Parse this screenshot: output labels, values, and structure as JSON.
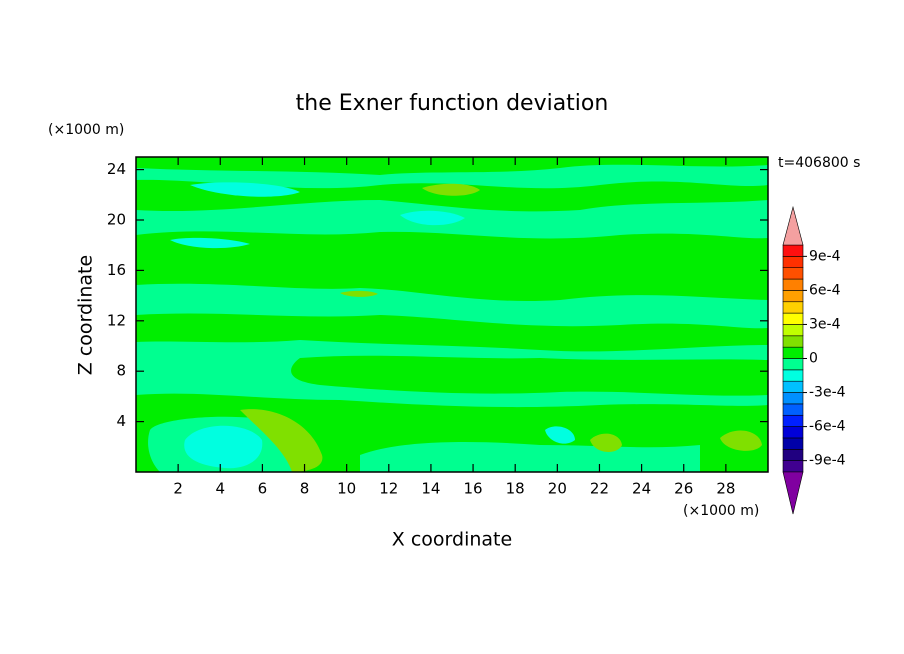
{
  "chart_data": {
    "type": "contour",
    "title": "the Exner function deviation",
    "xlabel": "X coordinate",
    "ylabel": "Z coordinate",
    "x_unit": "(×1000 m)",
    "y_unit": "(×1000 m)",
    "annotation": "t=406800 s",
    "xlim": [
      0,
      30
    ],
    "ylim": [
      0,
      25
    ],
    "xticks": [
      2,
      4,
      6,
      8,
      10,
      12,
      14,
      16,
      18,
      20,
      22,
      24,
      26,
      28
    ],
    "yticks": [
      4,
      8,
      12,
      16,
      20,
      24
    ],
    "colorbar": {
      "levels": [
        -0.001,
        -0.0009,
        -0.0008,
        -0.0007,
        -0.0006,
        -0.0005,
        -0.0004,
        -0.0003,
        -0.0002,
        -0.0001,
        0,
        0.0001,
        0.0002,
        0.0003,
        0.0004,
        0.0005,
        0.0006,
        0.0007,
        0.0008,
        0.0009,
        0.001
      ],
      "colors": [
        "#400090",
        "#200080",
        "#0000a8",
        "#0000d8",
        "#0020ff",
        "#0060ff",
        "#0090ff",
        "#00c0ff",
        "#00ffe0",
        "#00ff90",
        "#00ee00",
        "#80e000",
        "#c0ff00",
        "#ffff00",
        "#ffd000",
        "#ffa000",
        "#ff8000",
        "#ff5000",
        "#ff3000",
        "#ff1010"
      ],
      "extend_low_color": "#8000a0",
      "extend_high_color": "#f4a0a0",
      "ticks": [
        {
          "value": 0.0009,
          "label": "9e-4"
        },
        {
          "value": 0.0006,
          "label": "6e-4"
        },
        {
          "value": 0.0003,
          "label": "3e-4"
        },
        0,
        {
          "value": -0.0003,
          "label": "-3e-4"
        },
        {
          "value": -0.0006,
          "label": "-6e-4"
        },
        {
          "value": -0.0009,
          "label": "-9e-4"
        }
      ]
    }
  }
}
